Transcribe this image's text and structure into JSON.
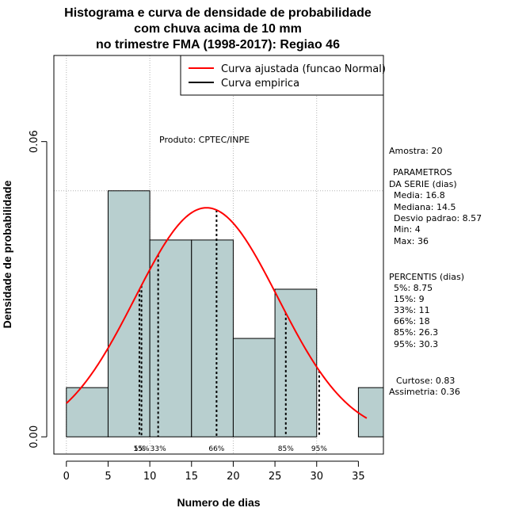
{
  "chart_data": {
    "type": "histogram",
    "title_lines": [
      "Histograma e curva de densidade de probabilidade",
      "com chuva acima de 10 mm",
      "no trimestre FMA (1998-2017): Regiao 46"
    ],
    "xlabel": "Numero de dias",
    "ylabel": "Densidade de probabilidade",
    "xlim": [
      -1.5,
      38
    ],
    "ylim": [
      -0.0035,
      0.0775
    ],
    "x_ticks": [
      0,
      5,
      10,
      15,
      20,
      25,
      30,
      35
    ],
    "y_ticks": [
      {
        "value": 0.0,
        "label": "0.00"
      },
      {
        "value": 0.06,
        "label": "0.06"
      }
    ],
    "x_gridlines": [
      0,
      10,
      20,
      30
    ],
    "y_gridlines": [
      0.05
    ],
    "bins": [
      {
        "start": 0,
        "end": 5,
        "density": 0.01
      },
      {
        "start": 5,
        "end": 10,
        "density": 0.05
      },
      {
        "start": 10,
        "end": 15,
        "density": 0.04
      },
      {
        "start": 15,
        "end": 20,
        "density": 0.04
      },
      {
        "start": 20,
        "end": 25,
        "density": 0.02
      },
      {
        "start": 25,
        "end": 30,
        "density": 0.03
      },
      {
        "start": 30,
        "end": 35,
        "density": 0.0
      },
      {
        "start": 35,
        "end": 40,
        "density": 0.01
      }
    ],
    "fitted_curve": {
      "distribution": "normal",
      "mean": 16.8,
      "sd": 8.57,
      "x_range": [
        0,
        36
      ]
    },
    "percentile_markers": [
      {
        "value": 8.75,
        "label": "5%"
      },
      {
        "value": 9,
        "label": "15%"
      },
      {
        "value": 11,
        "label": "33%"
      },
      {
        "value": 18,
        "label": "66%"
      },
      {
        "value": 26.3,
        "label": "85%"
      },
      {
        "value": 30.3,
        "label": "95%"
      }
    ],
    "legend": [
      {
        "label": "Curva ajustada (funcao Normal)",
        "color": "#ff0000"
      },
      {
        "label": "Curva empirica",
        "color": "#000000"
      }
    ],
    "legend_position": "top-right",
    "annotation": "Produto: CPTEC/INPE",
    "stats_panel": {
      "sample": "Amostra: 20",
      "params_header": [
        "PARAMETROS",
        "DA SERIE (dias)"
      ],
      "params": [
        "Media: 16.8",
        "Mediana: 14.5",
        "Desvio padrao: 8.57",
        "Min: 4",
        "Max: 36"
      ],
      "percentis_header": "PERCENTIS (dias)",
      "percentis": [
        "5%: 8.75",
        "15%: 9",
        "33%: 11",
        "66%: 18",
        "85%: 26.3",
        "95%: 30.3"
      ],
      "shape": [
        "Curtose: 0.83",
        "Assimetria: 0.36"
      ]
    }
  },
  "colors": {
    "bar_fill": "#b8cfcf",
    "bar_stroke": "#000000",
    "curve": "#ff0000",
    "percentile_line": "#000000",
    "grid": "#b3b3b3"
  }
}
